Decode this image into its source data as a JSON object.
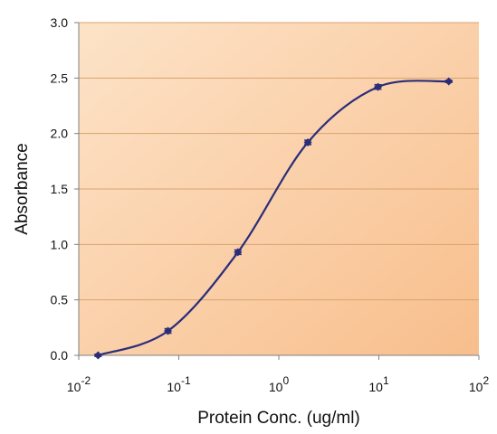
{
  "chart_data": {
    "type": "line",
    "title": "",
    "xlabel": "Protein Conc. (ug/ml)",
    "ylabel": "Absorbance",
    "x_scale": "log",
    "xlim": [
      0.01,
      100
    ],
    "ylim": [
      0,
      3.0
    ],
    "x_ticks": [
      {
        "base": "10",
        "exp": "-2"
      },
      {
        "base": "10",
        "exp": "-1"
      },
      {
        "base": "10",
        "exp": "0"
      },
      {
        "base": "10",
        "exp": "1"
      },
      {
        "base": "10",
        "exp": "2"
      }
    ],
    "y_ticks": [
      "0.0",
      "0.5",
      "1.0",
      "1.5",
      "2.0",
      "2.5",
      "3.0"
    ],
    "grid": "horizontal",
    "legend": "none",
    "series": [
      {
        "x": [
          0.0156,
          0.078,
          0.39,
          1.95,
          9.8,
          50
        ],
        "y": [
          0.0,
          0.22,
          0.93,
          1.92,
          2.42,
          2.47
        ],
        "error": [
          0.01,
          0.02,
          0.02,
          0.02,
          0.02,
          0.01
        ]
      }
    ],
    "colors": {
      "line": "#2b2d7a",
      "marker": "#2b2d7a",
      "plot_bg_light": "#fde3c8",
      "plot_bg_dark": "#f8be8c",
      "grid": "#d9a36f",
      "axis": "#808080"
    }
  }
}
